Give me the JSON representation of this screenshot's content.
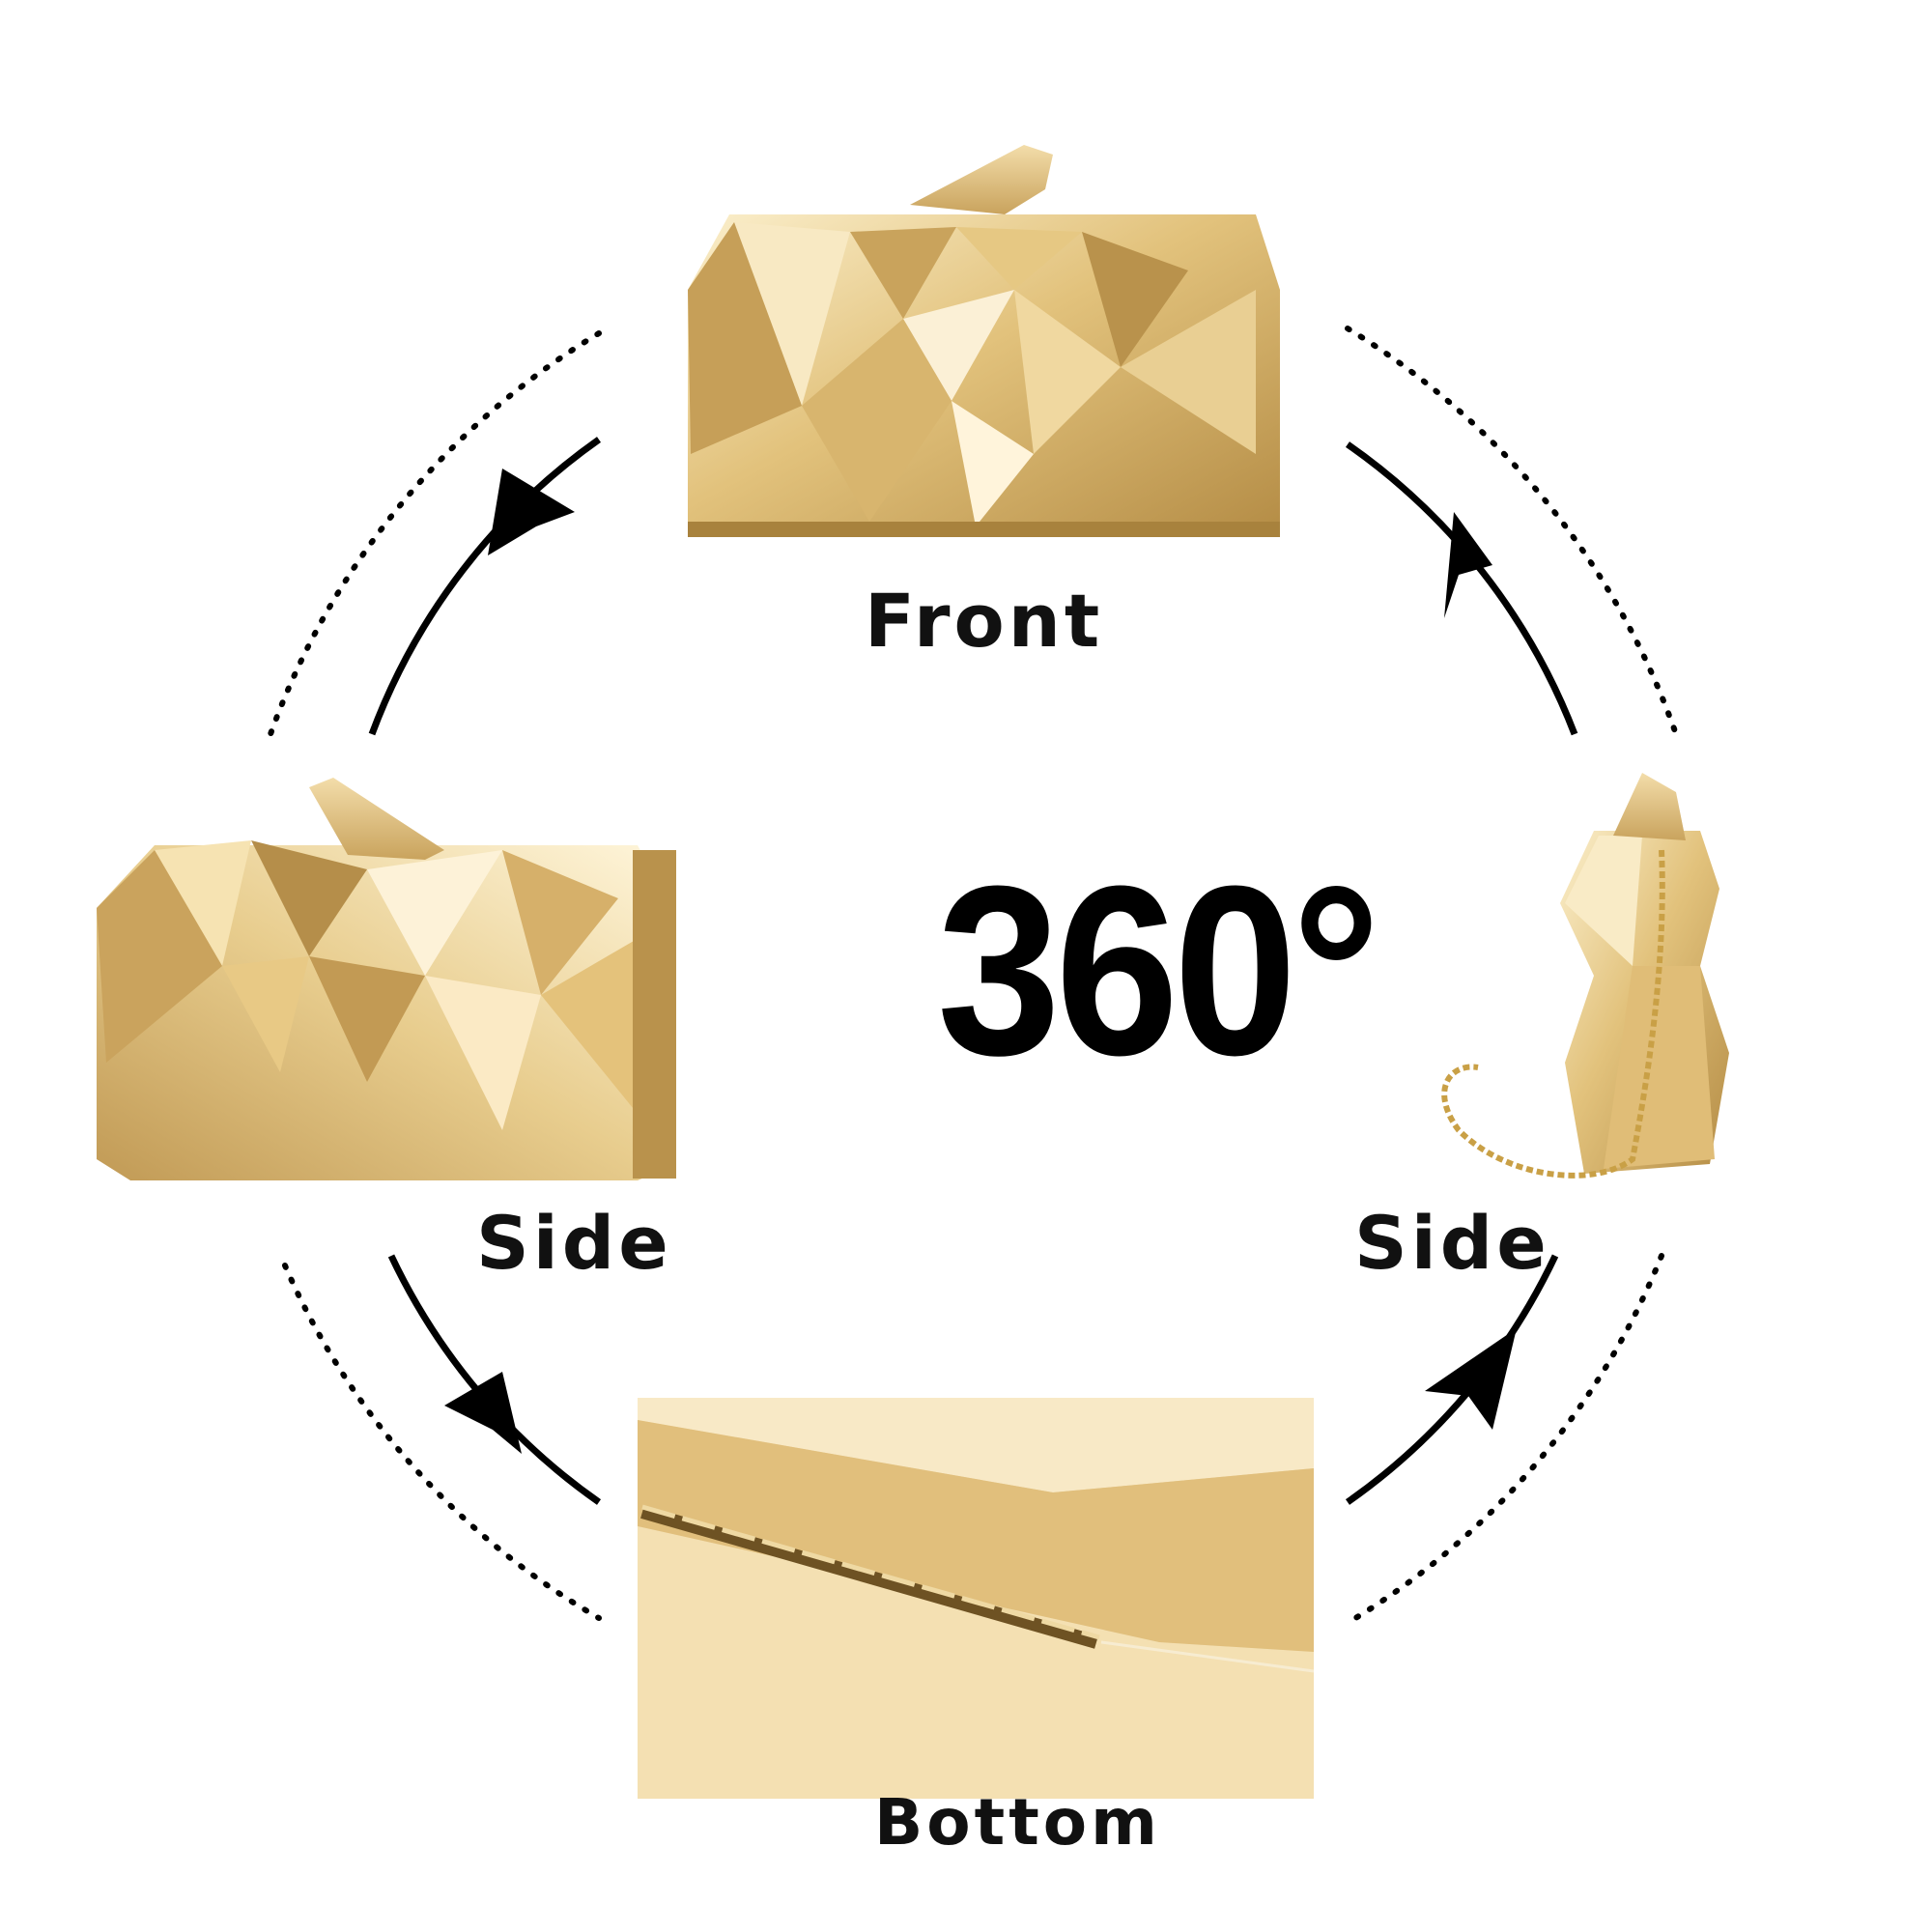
{
  "title": "360°",
  "views": {
    "front": "Front",
    "side_left": "Side",
    "side_right": "Side",
    "bottom": "Bottom"
  },
  "colors": {
    "gold_light": "#f7e6b8",
    "gold_mid": "#d9b56a",
    "gold_dark": "#a8823d",
    "arrow": "#000000"
  },
  "icons": {
    "rotation": "circular-arrows-clockwise"
  }
}
